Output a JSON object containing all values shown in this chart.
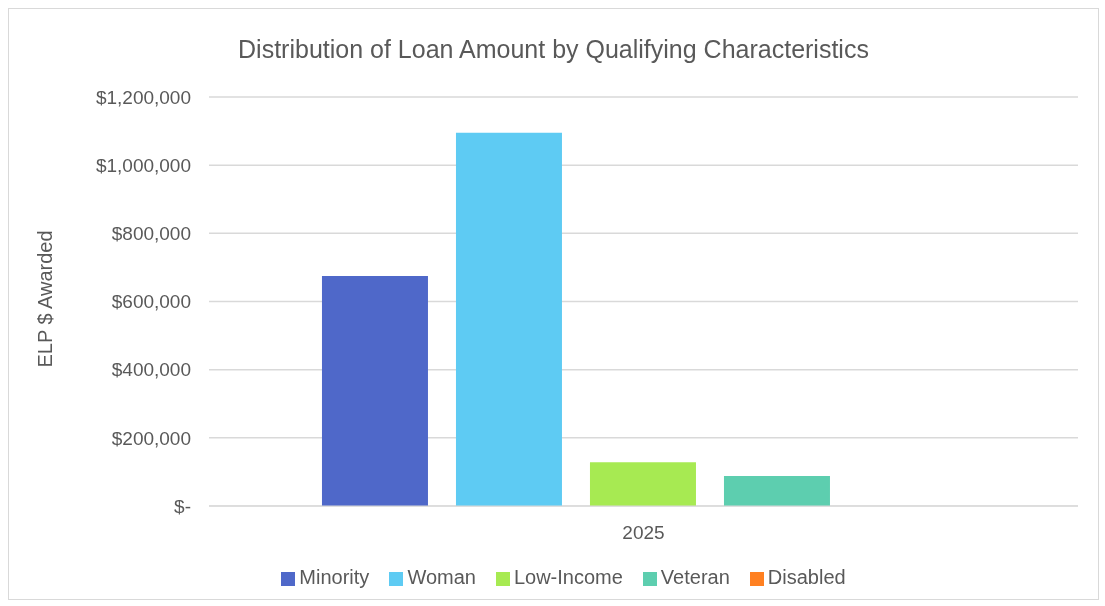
{
  "chart_data": {
    "type": "bar",
    "title": "Distribution of Loan Amount by Qualifying Characteristics",
    "ylabel": "ELP $ Awarded",
    "categories": [
      "2025"
    ],
    "series": [
      {
        "name": "Minority",
        "color": "#4f68c9",
        "values": [
          675000
        ]
      },
      {
        "name": "Woman",
        "color": "#5ecbf3",
        "values": [
          1095000
        ]
      },
      {
        "name": "Low-Income",
        "color": "#a7ea52",
        "values": [
          128000
        ]
      },
      {
        "name": "Veteran",
        "color": "#5dceaf",
        "values": [
          88000
        ]
      },
      {
        "name": "Disabled",
        "color": "#ff8021",
        "values": [
          0
        ]
      }
    ],
    "ylim": [
      0,
      1200000
    ],
    "yticks": [
      {
        "value": 0,
        "label": "$-"
      },
      {
        "value": 200000,
        "label": "$200,000"
      },
      {
        "value": 400000,
        "label": "$400,000"
      },
      {
        "value": 600000,
        "label": "$600,000"
      },
      {
        "value": 800000,
        "label": "$800,000"
      },
      {
        "value": 1000000,
        "label": "$1,000,000"
      },
      {
        "value": 1200000,
        "label": "$1,200,000"
      }
    ],
    "grid": "y",
    "legend": "bottom"
  }
}
